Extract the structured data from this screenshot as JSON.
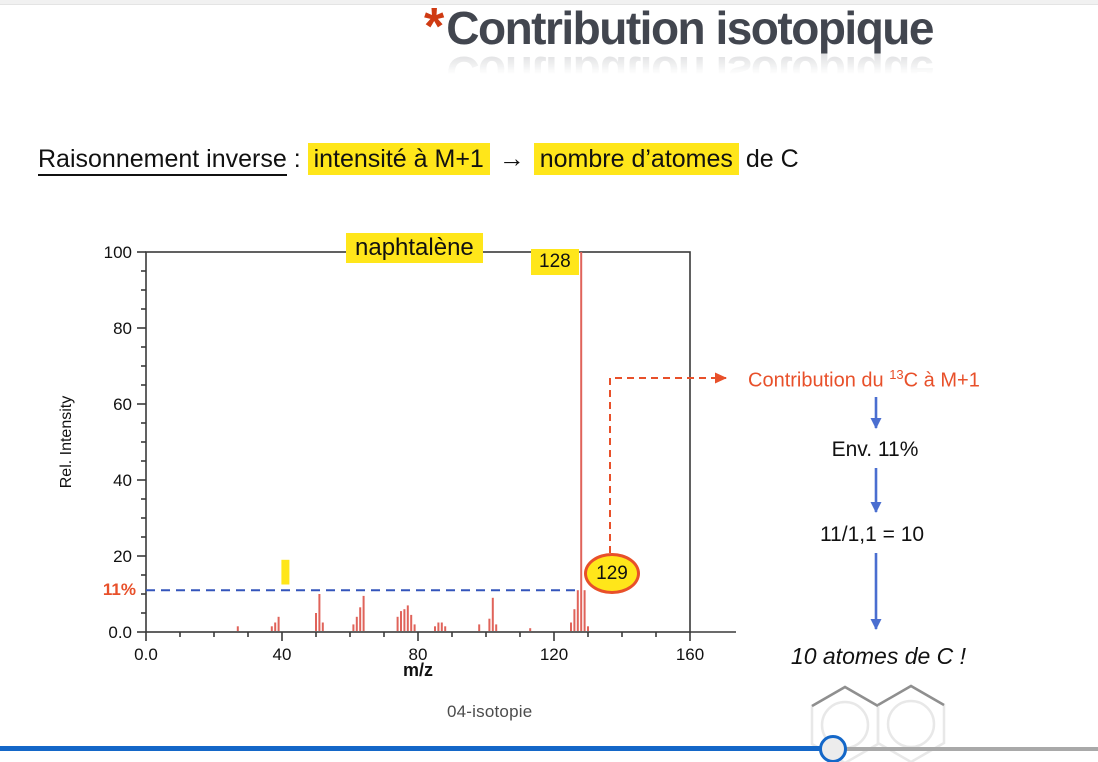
{
  "header": {
    "asterisk": "*",
    "title": "Contribution isotopique"
  },
  "statement": {
    "lead": "Raisonnement inverse",
    "colon": " : ",
    "hl1": "intensité à M+1",
    "arrow": "→",
    "hl2": "nombre d’atomes",
    "tail": " de C"
  },
  "chart_data": {
    "type": "bar",
    "title": "naphtalène",
    "xlabel": "m/z",
    "ylabel": "Rel. Intensity",
    "xlim": [
      0,
      160
    ],
    "ylim": [
      0,
      100
    ],
    "grid": false,
    "x_ticks": {
      "values": [
        0,
        40,
        80,
        120,
        160
      ],
      "labels": [
        "0.0",
        "40",
        "80",
        "120",
        "160"
      ],
      "minor_step": 10
    },
    "y_ticks": {
      "values": [
        0,
        20,
        40,
        60,
        80,
        100
      ],
      "labels": [
        "0.0",
        "20",
        "40",
        "60",
        "80",
        "100"
      ],
      "minor_step": 5
    },
    "peaks": [
      [
        27,
        1.5
      ],
      [
        37,
        1.5
      ],
      [
        38,
        2.5
      ],
      [
        39,
        4
      ],
      [
        50,
        5
      ],
      [
        51,
        10
      ],
      [
        52,
        2.5
      ],
      [
        61,
        2
      ],
      [
        62,
        4
      ],
      [
        63,
        6.5
      ],
      [
        64,
        9.5
      ],
      [
        74,
        4
      ],
      [
        75,
        5.5
      ],
      [
        76,
        6
      ],
      [
        77,
        7
      ],
      [
        78,
        4.5
      ],
      [
        79,
        2
      ],
      [
        85,
        1.5
      ],
      [
        86,
        2.5
      ],
      [
        87,
        2.5
      ],
      [
        88,
        1.5
      ],
      [
        98,
        2
      ],
      [
        101,
        3.5
      ],
      [
        102,
        9
      ],
      [
        103,
        2
      ],
      [
        113,
        1
      ],
      [
        125,
        2.5
      ],
      [
        126,
        6
      ],
      [
        127,
        11
      ],
      [
        128,
        100
      ],
      [
        129,
        11
      ],
      [
        130,
        1.5
      ]
    ],
    "main_peak": {
      "mz": 128,
      "intensity": 100,
      "label": "128"
    },
    "isotope_peak": {
      "mz": 129,
      "intensity": 11,
      "label": "129"
    },
    "reference_line": {
      "value": 11,
      "label": "11%",
      "x_start": 0,
      "x_end": 128,
      "style": "dashed"
    },
    "highlight_mark": {
      "mz": 41,
      "from": 12.5,
      "to": 19
    }
  },
  "annotation": {
    "contribution": {
      "pre": "Contribution du ",
      "sup": "13",
      "post": "C à M+1"
    },
    "env": "Env. 11%",
    "calc": "11/1,1 = 10",
    "result": "10 atomes de C !"
  },
  "footer": {
    "caption": "04-isotopie"
  },
  "colors": {
    "accent": "#e8502a",
    "highlight": "#ffe61a",
    "peak": "#e0635a",
    "arrow_blue": "#4a6ed0",
    "ref_blue": "#3355bb",
    "axis": "#3a3a3a",
    "progress_blue": "#1467c8",
    "progress_gray": "#a9a9a9"
  }
}
